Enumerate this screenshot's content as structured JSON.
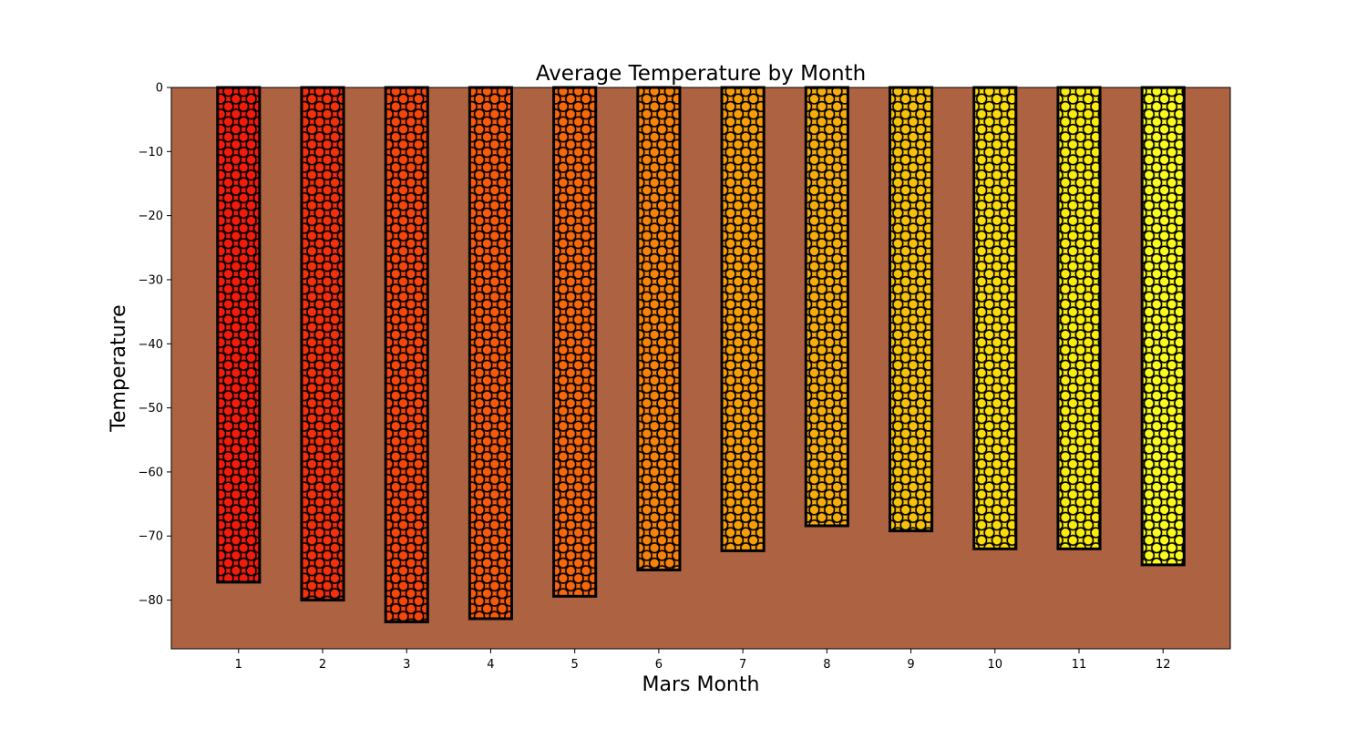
{
  "chart_data": {
    "type": "bar",
    "title": "Average Temperature by Month",
    "xlabel": "Mars Month",
    "ylabel": "Temperature",
    "categories": [
      "1",
      "2",
      "3",
      "4",
      "5",
      "6",
      "7",
      "8",
      "9",
      "10",
      "11",
      "12"
    ],
    "values": [
      -77.2,
      -80.0,
      -83.4,
      -82.9,
      -79.4,
      -75.3,
      -72.3,
      -68.4,
      -69.2,
      -72.0,
      -72.0,
      -74.5
    ],
    "ylim": [
      -87.6,
      0
    ],
    "yticks": [
      0,
      -10,
      -20,
      -30,
      -40,
      -50,
      -60,
      -70,
      -80
    ],
    "ytick_labels": [
      "0",
      "−10",
      "−20",
      "−30",
      "−40",
      "−50",
      "−60",
      "−70",
      "−80"
    ],
    "grid": false,
    "legend": "none",
    "hatch": "circles",
    "colors": {
      "plot_background": "#ad6342",
      "bar_edge": "#000000",
      "bar_fills": [
        "#f31c0c",
        "#f3300c",
        "#f5460c",
        "#f85a0b",
        "#f8680a",
        "#f88309",
        "#f89f08",
        "#f7ad0c",
        "#f8c20a",
        "#fbdc0c",
        "#fbec0e",
        "#fbfb20"
      ]
    }
  }
}
